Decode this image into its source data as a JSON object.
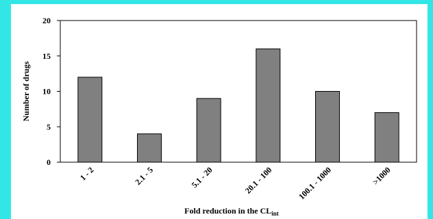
{
  "chart_data": {
    "type": "bar",
    "categories": [
      "1 - 2",
      "2.1 - 5",
      "5.1 - 20",
      "20.1 - 100",
      "100.1 - 1000",
      ">1000"
    ],
    "values": [
      12,
      4,
      9,
      16,
      10,
      7
    ],
    "ylabel": "Number of drugs",
    "xlabel": "Fold reduction in the CL",
    "xlabel_subscript": "int",
    "ylim": [
      0,
      20
    ],
    "yticks": [
      0,
      5,
      10,
      15,
      20
    ],
    "grid": false,
    "colors": {
      "bar": "#808080",
      "background": "#33e6e6",
      "plot_bg": "#ffffff"
    }
  }
}
